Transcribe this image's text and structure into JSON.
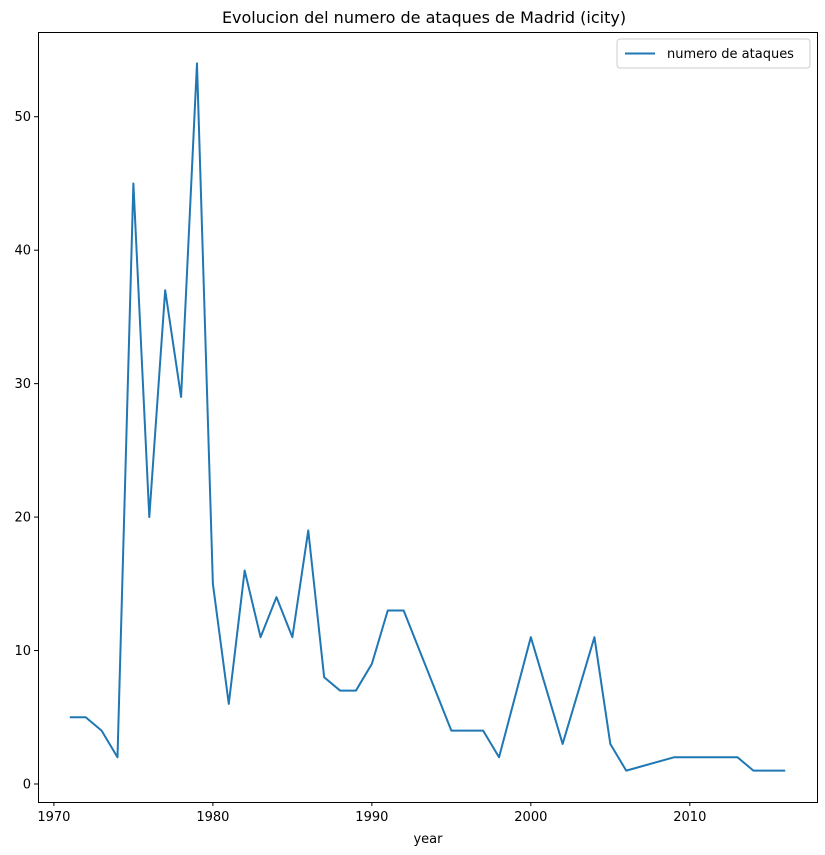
{
  "chart_data": {
    "type": "line",
    "title": "Evolucion del numero de ataques de Madrid (icity)",
    "xlabel": "year",
    "ylabel": "",
    "xlim": [
      1969,
      2018
    ],
    "ylim": [
      -1.35,
      56.35
    ],
    "xticks": [
      1970,
      1980,
      1990,
      2000,
      2010
    ],
    "yticks": [
      0,
      10,
      20,
      30,
      40,
      50
    ],
    "grid": false,
    "legend_position": "top-right",
    "series": [
      {
        "name": "numero de ataques",
        "color": "#1f77b4",
        "x": [
          1971,
          1972,
          1973,
          1974,
          1975,
          1976,
          1977,
          1978,
          1979,
          1980,
          1981,
          1982,
          1983,
          1984,
          1985,
          1986,
          1987,
          1988,
          1989,
          1990,
          1991,
          1992,
          1995,
          1996,
          1997,
          1998,
          2000,
          2002,
          2004,
          2005,
          2006,
          2009,
          2010,
          2011,
          2012,
          2013,
          2014,
          2015,
          2016
        ],
        "values": [
          5,
          5,
          4,
          2,
          45,
          20,
          37,
          29,
          54,
          15,
          6,
          16,
          11,
          14,
          11,
          19,
          8,
          7,
          7,
          9,
          13,
          13,
          4,
          4,
          4,
          2,
          11,
          3,
          11,
          3,
          1,
          2,
          2,
          2,
          2,
          2,
          1,
          1,
          1
        ]
      }
    ]
  }
}
